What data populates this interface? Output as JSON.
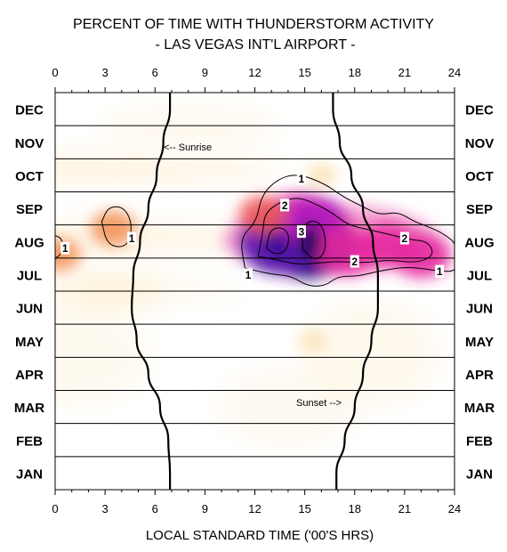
{
  "chart_data": {
    "type": "heatmap",
    "title": "PERCENT OF TIME WITH THUNDERSTORM ACTIVITY",
    "subtitle": "- LAS VEGAS INT'L AIRPORT -",
    "xlabel": "LOCAL STANDARD TIME ('00'S HRS)",
    "xlim": [
      0,
      24
    ],
    "x_ticks": [
      "0",
      "3",
      "6",
      "9",
      "12",
      "15",
      "18",
      "21",
      "24"
    ],
    "y_categories": [
      "JAN",
      "FEB",
      "MAR",
      "APR",
      "MAY",
      "JUN",
      "JUL",
      "AUG",
      "SEP",
      "OCT",
      "NOV",
      "DEC"
    ],
    "grid": true,
    "contour_levels": [
      "1",
      "2",
      "3"
    ],
    "annotations": [
      "<-- Sunrise",
      "Sunset -->"
    ],
    "sunrise_hour": [
      6.9,
      6.8,
      6.3,
      5.6,
      4.9,
      4.6,
      4.7,
      5.1,
      5.6,
      6.1,
      6.5,
      6.9
    ],
    "sunset_hour": [
      16.9,
      17.4,
      18.0,
      18.5,
      19.0,
      19.4,
      19.4,
      19.1,
      18.5,
      17.8,
      17.1,
      16.7
    ],
    "hotspots": [
      {
        "x": 15.2,
        "y": 7.0,
        "value": 3.6
      },
      {
        "x": 13.5,
        "y": 7.0,
        "value": 3.1
      },
      {
        "x": 15.5,
        "y": 7.6,
        "value": 2.3
      },
      {
        "x": 17.5,
        "y": 6.7,
        "value": 2.1
      },
      {
        "x": 20.0,
        "y": 6.9,
        "value": 1.9
      },
      {
        "x": 22.0,
        "y": 6.6,
        "value": 1.9
      },
      {
        "x": 12.5,
        "y": 7.8,
        "value": 1.4
      },
      {
        "x": 3.5,
        "y": 7.4,
        "value": 1.2
      },
      {
        "x": 0.3,
        "y": 6.6,
        "value": 1.0
      },
      {
        "x": 16.0,
        "y": 9.0,
        "value": 0.5
      },
      {
        "x": 15.5,
        "y": 4.0,
        "value": 0.4
      }
    ],
    "contour_labels": [
      {
        "text": "1",
        "x": 14.8,
        "y": 8.9
      },
      {
        "text": "2",
        "x": 13.8,
        "y": 8.1
      },
      {
        "text": "3",
        "x": 14.8,
        "y": 7.3
      },
      {
        "text": "2",
        "x": 18.0,
        "y": 6.4
      },
      {
        "text": "2",
        "x": 21.0,
        "y": 7.1
      },
      {
        "text": "1",
        "x": 11.6,
        "y": 6.0
      },
      {
        "text": "1",
        "x": 23.1,
        "y": 6.1
      },
      {
        "text": "1",
        "x": 4.6,
        "y": 7.1
      },
      {
        "text": "1",
        "x": 0.6,
        "y": 6.8
      }
    ]
  }
}
